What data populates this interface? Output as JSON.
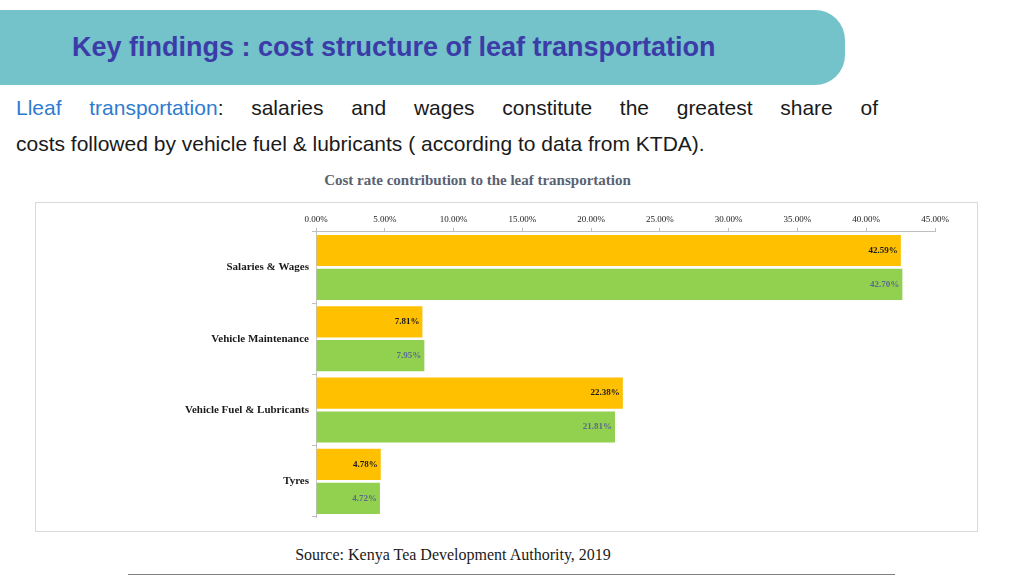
{
  "slide": {
    "heading": "Key findings : cost structure of leaf transportation",
    "intro_highlight": "Lleaf transportation",
    "intro_lines": [
      ": salaries and wages constitute the greatest share of",
      "costs followed by vehicle fuel & lubricants ( according to data from KTDA)."
    ],
    "source": "Source: Kenya Tea Development Authority, 2019"
  },
  "chart_data": {
    "type": "bar",
    "orientation": "horizontal",
    "title": "Cost rate contribution to the leaf transportation",
    "categories": [
      "Salaries & Wages",
      "Vehicle Maintenance",
      "Vehicle Fuel & Lubricants",
      "Tyres"
    ],
    "series": [
      {
        "color": "#ffc000",
        "values": [
          42.59,
          7.81,
          22.38,
          4.78
        ],
        "value_labels": [
          "42.59%",
          "7.81%",
          "22.38%",
          "4.78%"
        ]
      },
      {
        "color": "#92d050",
        "values": [
          42.7,
          7.95,
          21.81,
          4.72
        ],
        "value_labels": [
          "42.70%",
          "7.95%",
          "21.81%",
          "4.72%"
        ]
      }
    ],
    "xlim": [
      0,
      45
    ],
    "xticks": [
      {
        "value": 0,
        "label": "0.00%"
      },
      {
        "value": 5,
        "label": "5.00%"
      },
      {
        "value": 10,
        "label": "10.00%"
      },
      {
        "value": 15,
        "label": "15.00%"
      },
      {
        "value": 20,
        "label": "20.00%"
      },
      {
        "value": 25,
        "label": "25.00%"
      },
      {
        "value": 30,
        "label": "30.00%"
      },
      {
        "value": 35,
        "label": "35.00%"
      },
      {
        "value": 40,
        "label": "40.00%"
      },
      {
        "value": 45,
        "label": "45.00%"
      }
    ],
    "grid": false,
    "data_labels": true
  }
}
